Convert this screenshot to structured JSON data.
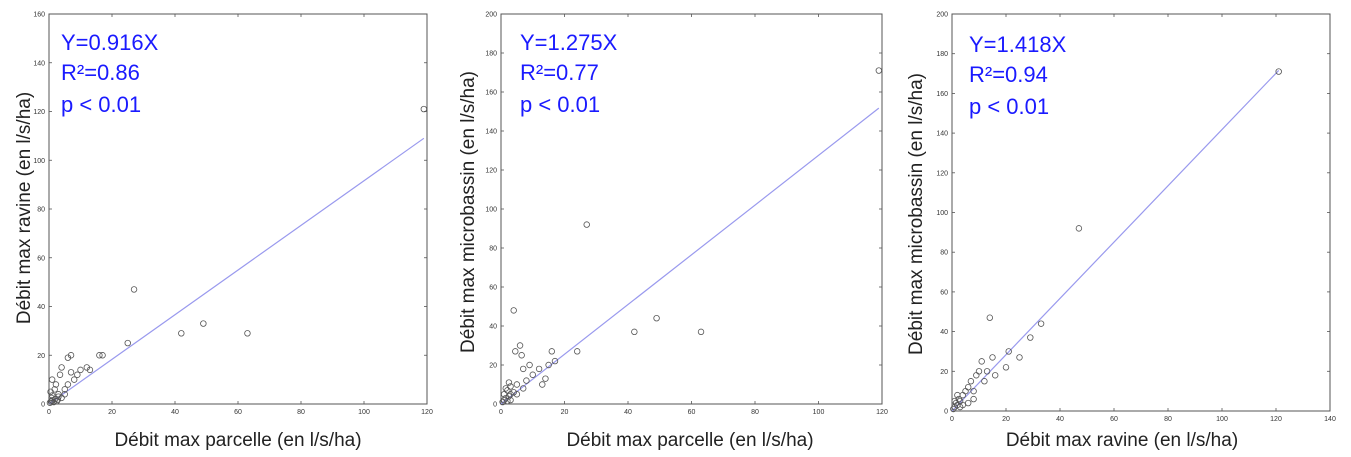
{
  "chart_data": [
    {
      "type": "scatter",
      "xlabel": "Débit max parcelle (en l/s/ha)",
      "ylabel": "Débit max ravine (en l/s/ha)",
      "xlim": [
        0,
        120
      ],
      "ylim": [
        0,
        160
      ],
      "xticks": [
        "0",
        "20",
        "40",
        "60",
        "80",
        "100",
        "120"
      ],
      "yticks": [
        "0",
        "20",
        "40",
        "60",
        "80",
        "100",
        "120",
        "140",
        "160"
      ],
      "annotations": [
        "Y=0.916X",
        "R²=0.86",
        "p < 0.01"
      ],
      "fit_slope": 0.916,
      "points": [
        [
          0.3,
          0.5
        ],
        [
          0.6,
          1
        ],
        [
          1,
          1.5
        ],
        [
          1.5,
          0.8
        ],
        [
          2,
          2
        ],
        [
          2.5,
          1.2
        ],
        [
          3,
          3
        ],
        [
          1,
          3.5
        ],
        [
          0.5,
          5
        ],
        [
          1.8,
          6
        ],
        [
          2.2,
          8
        ],
        [
          1,
          10
        ],
        [
          3,
          4
        ],
        [
          4,
          2.5
        ],
        [
          5,
          6
        ],
        [
          6,
          8
        ],
        [
          3.5,
          12
        ],
        [
          4,
          15
        ],
        [
          6,
          19
        ],
        [
          7,
          20
        ],
        [
          8,
          10
        ],
        [
          9,
          12
        ],
        [
          12,
          15
        ],
        [
          13,
          14
        ],
        [
          16,
          20
        ],
        [
          17,
          20
        ],
        [
          25,
          25
        ],
        [
          27,
          47
        ],
        [
          42,
          29
        ],
        [
          49,
          33
        ],
        [
          63,
          29
        ],
        [
          119,
          121
        ],
        [
          0.8,
          2.5
        ],
        [
          2.8,
          1.8
        ],
        [
          5,
          4
        ],
        [
          10,
          14
        ],
        [
          7,
          13
        ]
      ],
      "colors": {
        "points": "#555555",
        "fit": "#9999ee",
        "annotation": "#1a1aff"
      }
    },
    {
      "type": "scatter",
      "xlabel": "Débit max parcelle (en l/s/ha)",
      "ylabel": "Débit max microbassin (en l/s/ha)",
      "xlim": [
        0,
        120
      ],
      "ylim": [
        0,
        200
      ],
      "xticks": [
        "0",
        "20",
        "40",
        "60",
        "80",
        "100",
        "120"
      ],
      "yticks": [
        "0",
        "20",
        "40",
        "60",
        "80",
        "100",
        "120",
        "140",
        "160",
        "180",
        "200"
      ],
      "annotations": [
        "Y=1.275X",
        "R²=0.77",
        "p < 0.01"
      ],
      "fit_slope": 1.275,
      "points": [
        [
          0.5,
          1
        ],
        [
          1,
          2
        ],
        [
          1.5,
          3
        ],
        [
          2,
          1.5
        ],
        [
          2.5,
          4
        ],
        [
          3,
          2
        ],
        [
          1,
          5
        ],
        [
          2,
          7
        ],
        [
          3,
          9
        ],
        [
          4,
          6
        ],
        [
          5,
          10
        ],
        [
          4,
          48
        ],
        [
          4.5,
          27
        ],
        [
          6,
          30
        ],
        [
          6.5,
          25
        ],
        [
          7,
          18
        ],
        [
          8,
          12
        ],
        [
          9,
          20
        ],
        [
          10,
          15
        ],
        [
          12,
          18
        ],
        [
          13,
          10
        ],
        [
          14,
          13
        ],
        [
          15,
          20
        ],
        [
          16,
          27
        ],
        [
          17,
          22
        ],
        [
          24,
          27
        ],
        [
          27,
          92
        ],
        [
          42,
          37
        ],
        [
          49,
          44
        ],
        [
          63,
          37
        ],
        [
          119,
          171
        ],
        [
          3,
          5
        ],
        [
          1.5,
          8
        ],
        [
          5,
          5
        ],
        [
          7,
          8
        ],
        [
          2.5,
          11
        ]
      ],
      "colors": {
        "points": "#555555",
        "fit": "#9999ee",
        "annotation": "#1a1aff"
      }
    },
    {
      "type": "scatter",
      "xlabel": "Débit max ravine (en l/s/ha)",
      "ylabel": "Débit max microbassin (en l/s/ha)",
      "xlim": [
        0,
        140
      ],
      "ylim": [
        0,
        200
      ],
      "xticks": [
        "0",
        "20",
        "40",
        "60",
        "80",
        "100",
        "120",
        "140"
      ],
      "yticks": [
        "0",
        "20",
        "40",
        "60",
        "80",
        "100",
        "120",
        "140",
        "160",
        "180",
        "200"
      ],
      "annotations": [
        "Y=1.418X",
        "R²=0.94",
        "p < 0.01"
      ],
      "fit_slope": 1.418,
      "points": [
        [
          0.5,
          1
        ],
        [
          1,
          2
        ],
        [
          1.5,
          4
        ],
        [
          2,
          3
        ],
        [
          2.5,
          6
        ],
        [
          3,
          5
        ],
        [
          4,
          8
        ],
        [
          5,
          10
        ],
        [
          6,
          12
        ],
        [
          7,
          15
        ],
        [
          8,
          10
        ],
        [
          9,
          18
        ],
        [
          10,
          20
        ],
        [
          11,
          25
        ],
        [
          12,
          15
        ],
        [
          13,
          20
        ],
        [
          14,
          47
        ],
        [
          15,
          27
        ],
        [
          16,
          18
        ],
        [
          20,
          22
        ],
        [
          21,
          30
        ],
        [
          25,
          27
        ],
        [
          29,
          37
        ],
        [
          33,
          44
        ],
        [
          47,
          92
        ],
        [
          121,
          171
        ],
        [
          1,
          5
        ],
        [
          2,
          8
        ],
        [
          3,
          2
        ],
        [
          6,
          4
        ],
        [
          8,
          6
        ],
        [
          4,
          3
        ]
      ],
      "colors": {
        "points": "#555555",
        "fit": "#9999ee",
        "annotation": "#1a1aff"
      }
    }
  ]
}
